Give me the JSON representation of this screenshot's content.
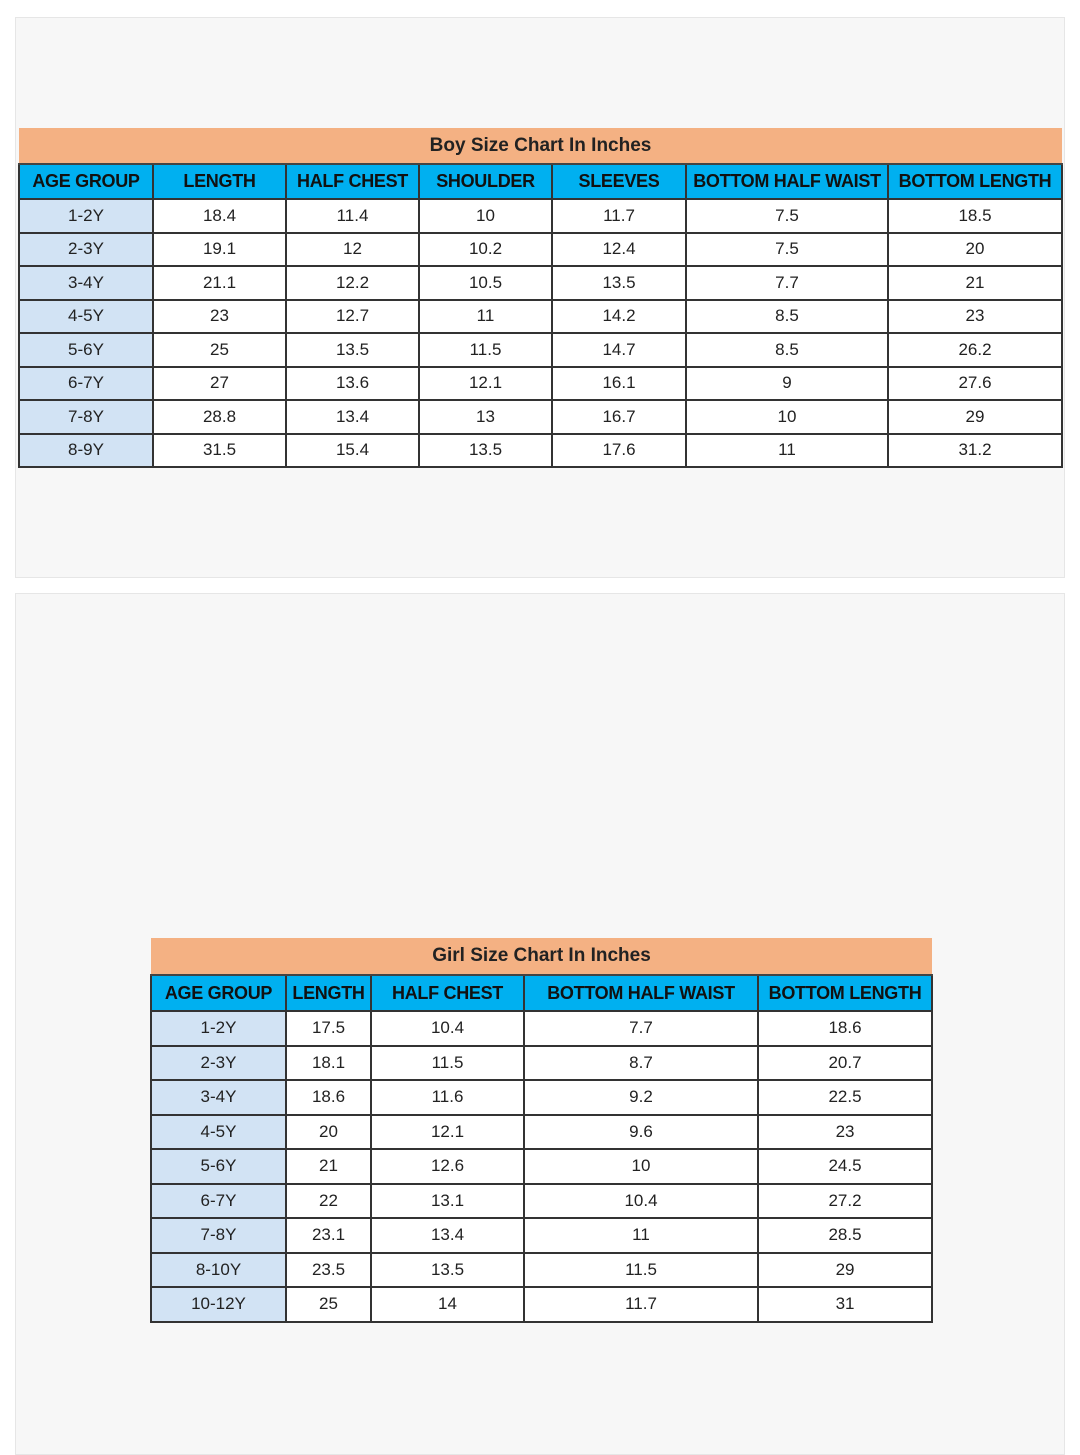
{
  "boy_chart": {
    "title": "Boy Size Chart In Inches",
    "columns": [
      "AGE GROUP",
      "LENGTH",
      "HALF CHEST",
      "SHOULDER",
      "SLEEVES",
      "BOTTOM HALF WAIST",
      "BOTTOM LENGTH"
    ],
    "rows": [
      [
        "1-2Y",
        "18.4",
        "11.4",
        "10",
        "11.7",
        "7.5",
        "18.5"
      ],
      [
        "2-3Y",
        "19.1",
        "12",
        "10.2",
        "12.4",
        "7.5",
        "20"
      ],
      [
        "3-4Y",
        "21.1",
        "12.2",
        "10.5",
        "13.5",
        "7.7",
        "21"
      ],
      [
        "4-5Y",
        "23",
        "12.7",
        "11",
        "14.2",
        "8.5",
        "23"
      ],
      [
        "5-6Y",
        "25",
        "13.5",
        "11.5",
        "14.7",
        "8.5",
        "26.2"
      ],
      [
        "6-7Y",
        "27",
        "13.6",
        "12.1",
        "16.1",
        "9",
        "27.6"
      ],
      [
        "7-8Y",
        "28.8",
        "13.4",
        "13",
        "16.7",
        "10",
        "29"
      ],
      [
        "8-9Y",
        "31.5",
        "15.4",
        "13.5",
        "17.6",
        "11",
        "31.2"
      ]
    ]
  },
  "girl_chart": {
    "title": "Girl Size Chart In Inches",
    "columns": [
      "AGE GROUP",
      "LENGTH",
      "HALF CHEST",
      "BOTTOM HALF WAIST",
      "BOTTOM LENGTH"
    ],
    "rows": [
      [
        "1-2Y",
        "17.5",
        "10.4",
        "7.7",
        "18.6"
      ],
      [
        "2-3Y",
        "18.1",
        "11.5",
        "8.7",
        "20.7"
      ],
      [
        "3-4Y",
        "18.6",
        "11.6",
        "9.2",
        "22.5"
      ],
      [
        "4-5Y",
        "20",
        "12.1",
        "9.6",
        "23"
      ],
      [
        "5-6Y",
        "21",
        "12.6",
        "10",
        "24.5"
      ],
      [
        "6-7Y",
        "22",
        "13.1",
        "10.4",
        "27.2"
      ],
      [
        "7-8Y",
        "23.1",
        "13.4",
        "11",
        "28.5"
      ],
      [
        "8-10Y",
        "23.5",
        "13.5",
        "11.5",
        "29"
      ],
      [
        "10-12Y",
        "25",
        "14",
        "11.7",
        "31"
      ]
    ]
  },
  "colors": {
    "title_bg": "#f4b183",
    "header_bg": "#00b0f0",
    "age_bg": "#d2e3f4"
  }
}
